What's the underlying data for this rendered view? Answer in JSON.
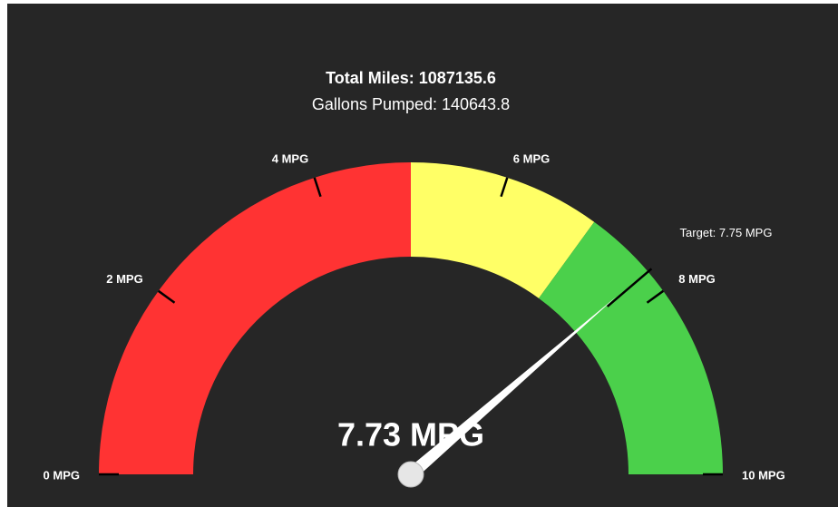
{
  "chart_data": {
    "type": "gauge",
    "title": "Total Miles: 1087135.6",
    "subtitle": "Gallons Pumped: 140643.8",
    "min": 0,
    "max": 10,
    "ticks": [
      {
        "value": 0,
        "label": "0 MPG"
      },
      {
        "value": 2,
        "label": "2 MPG"
      },
      {
        "value": 4,
        "label": "4 MPG"
      },
      {
        "value": 6,
        "label": "6 MPG"
      },
      {
        "value": 8,
        "label": "8 MPG"
      },
      {
        "value": 10,
        "label": "10 MPG"
      }
    ],
    "bands": [
      {
        "from": 0,
        "to": 5,
        "color": "#ff3333"
      },
      {
        "from": 5,
        "to": 7,
        "color": "#ffff66"
      },
      {
        "from": 7,
        "to": 10,
        "color": "#4bd04b"
      }
    ],
    "value": 7.73,
    "value_label": "7.73 MPG",
    "target": {
      "value": 7.75,
      "label": "Target: 7.75 MPG"
    }
  }
}
